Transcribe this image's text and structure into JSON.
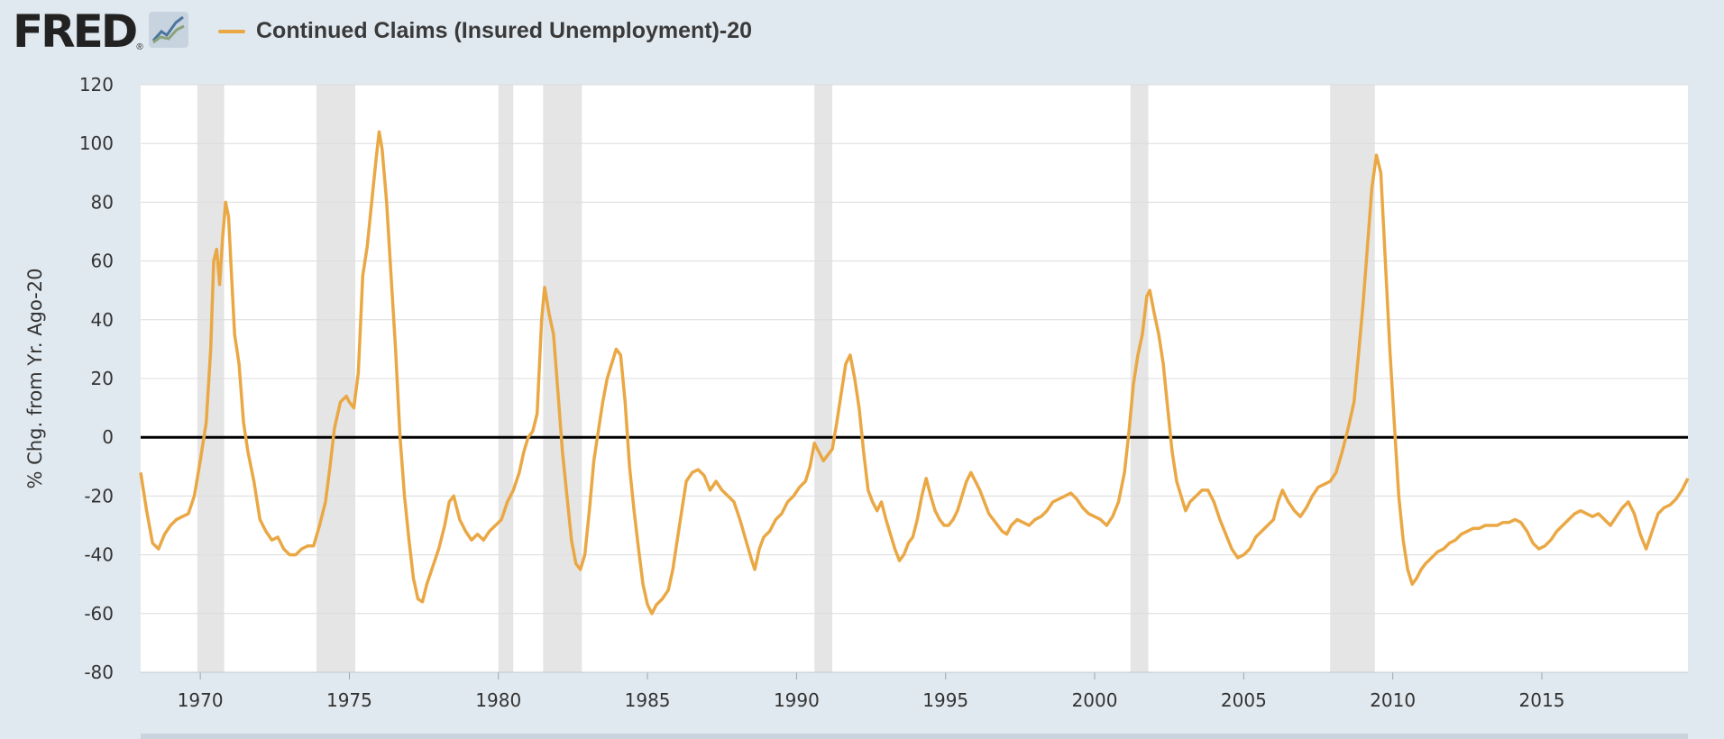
{
  "header": {
    "logo": "FRED",
    "logo_mark": "®",
    "logo_icon": "graph-icon"
  },
  "chart_data": {
    "type": "line",
    "legend_placement": "top-left",
    "ylabel": "% Chg. from Yr. Ago-20",
    "xlim": [
      1968.0,
      2019.9
    ],
    "ylim": [
      -80,
      120
    ],
    "yticks": [
      120,
      100,
      80,
      60,
      40,
      20,
      0,
      -20,
      -40,
      -60,
      -80
    ],
    "xticks": [
      1970,
      1975,
      1980,
      1985,
      1990,
      1995,
      2000,
      2005,
      2010,
      2015
    ],
    "grid": true,
    "zero_line": true,
    "recessions": [
      [
        1969.9,
        1970.8
      ],
      [
        1973.9,
        1975.2
      ],
      [
        1980.0,
        1980.5
      ],
      [
        1981.5,
        1982.8
      ],
      [
        1990.6,
        1991.2
      ],
      [
        2001.2,
        2001.8
      ],
      [
        2007.9,
        2009.4
      ]
    ],
    "series": [
      {
        "name": "Continued Claims (Insured Unemployment)-20",
        "color": "#eaa845",
        "points": [
          [
            1968.0,
            -12
          ],
          [
            1968.2,
            -25
          ],
          [
            1968.4,
            -36
          ],
          [
            1968.6,
            -38
          ],
          [
            1968.8,
            -33
          ],
          [
            1969.0,
            -30
          ],
          [
            1969.2,
            -28
          ],
          [
            1969.4,
            -27
          ],
          [
            1969.6,
            -26
          ],
          [
            1969.8,
            -20
          ],
          [
            1970.0,
            -8
          ],
          [
            1970.2,
            5
          ],
          [
            1970.35,
            30
          ],
          [
            1970.45,
            60
          ],
          [
            1970.55,
            64
          ],
          [
            1970.65,
            52
          ],
          [
            1970.75,
            68
          ],
          [
            1970.85,
            80
          ],
          [
            1970.95,
            75
          ],
          [
            1971.05,
            55
          ],
          [
            1971.15,
            35
          ],
          [
            1971.3,
            25
          ],
          [
            1971.45,
            5
          ],
          [
            1971.6,
            -5
          ],
          [
            1971.8,
            -15
          ],
          [
            1972.0,
            -28
          ],
          [
            1972.2,
            -32
          ],
          [
            1972.4,
            -35
          ],
          [
            1972.6,
            -34
          ],
          [
            1972.8,
            -38
          ],
          [
            1973.0,
            -40
          ],
          [
            1973.2,
            -40
          ],
          [
            1973.4,
            -38
          ],
          [
            1973.6,
            -37
          ],
          [
            1973.8,
            -37
          ],
          [
            1974.0,
            -30
          ],
          [
            1974.2,
            -22
          ],
          [
            1974.35,
            -10
          ],
          [
            1974.5,
            3
          ],
          [
            1974.7,
            12
          ],
          [
            1974.9,
            14
          ],
          [
            1975.0,
            12
          ],
          [
            1975.15,
            10
          ],
          [
            1975.3,
            22
          ],
          [
            1975.45,
            55
          ],
          [
            1975.6,
            65
          ],
          [
            1975.75,
            80
          ],
          [
            1975.9,
            95
          ],
          [
            1976.0,
            104
          ],
          [
            1976.1,
            98
          ],
          [
            1976.25,
            80
          ],
          [
            1976.4,
            55
          ],
          [
            1976.55,
            30
          ],
          [
            1976.7,
            0
          ],
          [
            1976.85,
            -20
          ],
          [
            1977.0,
            -35
          ],
          [
            1977.15,
            -48
          ],
          [
            1977.3,
            -55
          ],
          [
            1977.45,
            -56
          ],
          [
            1977.6,
            -50
          ],
          [
            1977.8,
            -44
          ],
          [
            1978.0,
            -38
          ],
          [
            1978.2,
            -30
          ],
          [
            1978.35,
            -22
          ],
          [
            1978.5,
            -20
          ],
          [
            1978.7,
            -28
          ],
          [
            1978.9,
            -32
          ],
          [
            1979.1,
            -35
          ],
          [
            1979.3,
            -33
          ],
          [
            1979.5,
            -35
          ],
          [
            1979.7,
            -32
          ],
          [
            1979.9,
            -30
          ],
          [
            1980.1,
            -28
          ],
          [
            1980.3,
            -22
          ],
          [
            1980.5,
            -18
          ],
          [
            1980.7,
            -12
          ],
          [
            1980.85,
            -5
          ],
          [
            1981.0,
            0
          ],
          [
            1981.15,
            2
          ],
          [
            1981.3,
            8
          ],
          [
            1981.45,
            40
          ],
          [
            1981.55,
            51
          ],
          [
            1981.7,
            42
          ],
          [
            1981.85,
            35
          ],
          [
            1982.0,
            15
          ],
          [
            1982.15,
            -5
          ],
          [
            1982.3,
            -20
          ],
          [
            1982.45,
            -35
          ],
          [
            1982.6,
            -43
          ],
          [
            1982.75,
            -45
          ],
          [
            1982.9,
            -40
          ],
          [
            1983.05,
            -25
          ],
          [
            1983.2,
            -8
          ],
          [
            1983.35,
            2
          ],
          [
            1983.5,
            12
          ],
          [
            1983.65,
            20
          ],
          [
            1983.8,
            25
          ],
          [
            1983.95,
            30
          ],
          [
            1984.1,
            28
          ],
          [
            1984.25,
            12
          ],
          [
            1984.4,
            -10
          ],
          [
            1984.55,
            -25
          ],
          [
            1984.7,
            -38
          ],
          [
            1984.85,
            -50
          ],
          [
            1985.0,
            -57
          ],
          [
            1985.15,
            -60
          ],
          [
            1985.3,
            -57
          ],
          [
            1985.5,
            -55
          ],
          [
            1985.7,
            -52
          ],
          [
            1985.85,
            -45
          ],
          [
            1986.0,
            -35
          ],
          [
            1986.15,
            -25
          ],
          [
            1986.3,
            -15
          ],
          [
            1986.5,
            -12
          ],
          [
            1986.7,
            -11
          ],
          [
            1986.9,
            -13
          ],
          [
            1987.1,
            -18
          ],
          [
            1987.3,
            -15
          ],
          [
            1987.5,
            -18
          ],
          [
            1987.7,
            -20
          ],
          [
            1987.9,
            -22
          ],
          [
            1988.1,
            -28
          ],
          [
            1988.3,
            -35
          ],
          [
            1988.5,
            -42
          ],
          [
            1988.6,
            -45
          ],
          [
            1988.75,
            -38
          ],
          [
            1988.9,
            -34
          ],
          [
            1989.1,
            -32
          ],
          [
            1989.3,
            -28
          ],
          [
            1989.5,
            -26
          ],
          [
            1989.7,
            -22
          ],
          [
            1989.9,
            -20
          ],
          [
            1990.1,
            -17
          ],
          [
            1990.3,
            -15
          ],
          [
            1990.45,
            -10
          ],
          [
            1990.6,
            -2
          ],
          [
            1990.75,
            -5
          ],
          [
            1990.9,
            -8
          ],
          [
            1991.05,
            -6
          ],
          [
            1991.2,
            -4
          ],
          [
            1991.35,
            5
          ],
          [
            1991.5,
            15
          ],
          [
            1991.65,
            25
          ],
          [
            1991.8,
            28
          ],
          [
            1991.95,
            20
          ],
          [
            1992.1,
            10
          ],
          [
            1992.25,
            -5
          ],
          [
            1992.4,
            -18
          ],
          [
            1992.55,
            -22
          ],
          [
            1992.7,
            -25
          ],
          [
            1992.85,
            -22
          ],
          [
            1993.0,
            -28
          ],
          [
            1993.15,
            -33
          ],
          [
            1993.3,
            -38
          ],
          [
            1993.45,
            -42
          ],
          [
            1993.6,
            -40
          ],
          [
            1993.75,
            -36
          ],
          [
            1993.9,
            -34
          ],
          [
            1994.05,
            -28
          ],
          [
            1994.2,
            -20
          ],
          [
            1994.35,
            -14
          ],
          [
            1994.5,
            -20
          ],
          [
            1994.65,
            -25
          ],
          [
            1994.8,
            -28
          ],
          [
            1994.95,
            -30
          ],
          [
            1995.1,
            -30
          ],
          [
            1995.25,
            -28
          ],
          [
            1995.4,
            -25
          ],
          [
            1995.55,
            -20
          ],
          [
            1995.7,
            -15
          ],
          [
            1995.85,
            -12
          ],
          [
            1996.0,
            -15
          ],
          [
            1996.15,
            -18
          ],
          [
            1996.3,
            -22
          ],
          [
            1996.45,
            -26
          ],
          [
            1996.6,
            -28
          ],
          [
            1996.75,
            -30
          ],
          [
            1996.9,
            -32
          ],
          [
            1997.05,
            -33
          ],
          [
            1997.2,
            -30
          ],
          [
            1997.4,
            -28
          ],
          [
            1997.6,
            -29
          ],
          [
            1997.8,
            -30
          ],
          [
            1998.0,
            -28
          ],
          [
            1998.2,
            -27
          ],
          [
            1998.4,
            -25
          ],
          [
            1998.6,
            -22
          ],
          [
            1998.8,
            -21
          ],
          [
            1999.0,
            -20
          ],
          [
            1999.2,
            -19
          ],
          [
            1999.4,
            -21
          ],
          [
            1999.6,
            -24
          ],
          [
            1999.8,
            -26
          ],
          [
            2000.0,
            -27
          ],
          [
            2000.2,
            -28
          ],
          [
            2000.4,
            -30
          ],
          [
            2000.6,
            -27
          ],
          [
            2000.8,
            -22
          ],
          [
            2001.0,
            -12
          ],
          [
            2001.15,
            2
          ],
          [
            2001.3,
            18
          ],
          [
            2001.45,
            28
          ],
          [
            2001.6,
            35
          ],
          [
            2001.75,
            48
          ],
          [
            2001.85,
            50
          ],
          [
            2002.0,
            42
          ],
          [
            2002.15,
            35
          ],
          [
            2002.3,
            25
          ],
          [
            2002.45,
            10
          ],
          [
            2002.6,
            -5
          ],
          [
            2002.75,
            -15
          ],
          [
            2002.9,
            -20
          ],
          [
            2003.05,
            -25
          ],
          [
            2003.2,
            -22
          ],
          [
            2003.4,
            -20
          ],
          [
            2003.6,
            -18
          ],
          [
            2003.8,
            -18
          ],
          [
            2004.0,
            -22
          ],
          [
            2004.2,
            -28
          ],
          [
            2004.4,
            -33
          ],
          [
            2004.6,
            -38
          ],
          [
            2004.8,
            -41
          ],
          [
            2005.0,
            -40
          ],
          [
            2005.2,
            -38
          ],
          [
            2005.4,
            -34
          ],
          [
            2005.6,
            -32
          ],
          [
            2005.8,
            -30
          ],
          [
            2006.0,
            -28
          ],
          [
            2006.15,
            -22
          ],
          [
            2006.3,
            -18
          ],
          [
            2006.5,
            -22
          ],
          [
            2006.7,
            -25
          ],
          [
            2006.9,
            -27
          ],
          [
            2007.1,
            -24
          ],
          [
            2007.3,
            -20
          ],
          [
            2007.5,
            -17
          ],
          [
            2007.7,
            -16
          ],
          [
            2007.9,
            -15
          ],
          [
            2008.1,
            -12
          ],
          [
            2008.3,
            -5
          ],
          [
            2008.5,
            3
          ],
          [
            2008.7,
            12
          ],
          [
            2008.85,
            28
          ],
          [
            2009.0,
            45
          ],
          [
            2009.15,
            65
          ],
          [
            2009.3,
            85
          ],
          [
            2009.45,
            96
          ],
          [
            2009.6,
            90
          ],
          [
            2009.75,
            60
          ],
          [
            2009.9,
            30
          ],
          [
            2010.05,
            5
          ],
          [
            2010.2,
            -20
          ],
          [
            2010.35,
            -35
          ],
          [
            2010.5,
            -45
          ],
          [
            2010.65,
            -50
          ],
          [
            2010.8,
            -48
          ],
          [
            2010.95,
            -45
          ],
          [
            2011.1,
            -43
          ],
          [
            2011.3,
            -41
          ],
          [
            2011.5,
            -39
          ],
          [
            2011.7,
            -38
          ],
          [
            2011.9,
            -36
          ],
          [
            2012.1,
            -35
          ],
          [
            2012.3,
            -33
          ],
          [
            2012.5,
            -32
          ],
          [
            2012.7,
            -31
          ],
          [
            2012.9,
            -31
          ],
          [
            2013.1,
            -30
          ],
          [
            2013.3,
            -30
          ],
          [
            2013.5,
            -30
          ],
          [
            2013.7,
            -29
          ],
          [
            2013.9,
            -29
          ],
          [
            2014.1,
            -28
          ],
          [
            2014.3,
            -29
          ],
          [
            2014.5,
            -32
          ],
          [
            2014.7,
            -36
          ],
          [
            2014.9,
            -38
          ],
          [
            2015.1,
            -37
          ],
          [
            2015.3,
            -35
          ],
          [
            2015.5,
            -32
          ],
          [
            2015.7,
            -30
          ],
          [
            2015.9,
            -28
          ],
          [
            2016.1,
            -26
          ],
          [
            2016.3,
            -25
          ],
          [
            2016.5,
            -26
          ],
          [
            2016.7,
            -27
          ],
          [
            2016.9,
            -26
          ],
          [
            2017.1,
            -28
          ],
          [
            2017.3,
            -30
          ],
          [
            2017.5,
            -27
          ],
          [
            2017.7,
            -24
          ],
          [
            2017.9,
            -22
          ],
          [
            2018.1,
            -26
          ],
          [
            2018.3,
            -33
          ],
          [
            2018.5,
            -38
          ],
          [
            2018.7,
            -32
          ],
          [
            2018.9,
            -26
          ],
          [
            2019.1,
            -24
          ],
          [
            2019.3,
            -23
          ],
          [
            2019.5,
            -21
          ],
          [
            2019.7,
            -18
          ],
          [
            2019.9,
            -14
          ]
        ]
      }
    ]
  }
}
